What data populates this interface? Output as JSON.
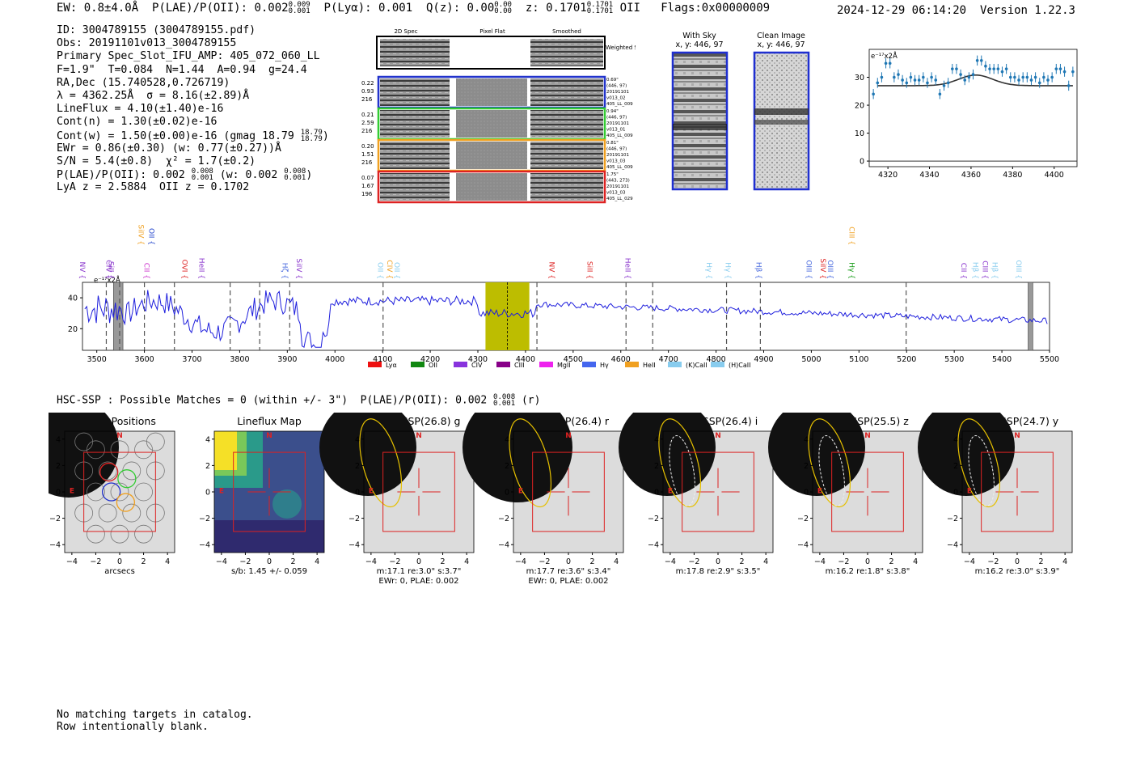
{
  "header": {
    "ew_text": "EW: 0.8±4.0Å",
    "plae_text": "P(LAE)/P(OII): 0.002",
    "plae_hi": "0.009",
    "plae_lo": "0.001",
    "plya_text": "P(Lyα): 0.001",
    "qz_text": "Q(z): 0.00",
    "qz_hi": "0.00",
    "qz_lo": "0.00",
    "z_text": "z: 0.1701",
    "z_hi": "0.1701",
    "z_lo": "0.1701",
    "z_line": "OII",
    "flags_text": "Flags:0x00000009",
    "datetime": "2024-12-29 06:14:20",
    "version": "Version 1.22.3"
  },
  "info": {
    "id_line": "ID: 3004789155 (3004789155.pdf)",
    "obs_line": "Obs: 20191101v013_3004789155",
    "primary_line": "Primary Spec_Slot_IFU_AMP: 405_072_060_LL",
    "f_line": "F=1.9\"  T=0.084  N=1.44  A=0.94  g=24.4",
    "radec_line": "RA,Dec (15.740528,0.726719)",
    "lambda_line": "λ = 4362.25Å  σ = 8.16(±2.89)Å",
    "lineflux_line": "LineFlux = 4.10(±1.40)e-16",
    "contn_line": "Cont(n) = 1.30(±0.02)e-16",
    "contw_line": "Cont(w) = 1.50(±0.00)e-16 (gmag 18.79",
    "contw_hi": "18.79",
    "contw_lo": "18.79",
    "ewr_line": "EWr = 0.86(±0.30) (w: 0.77(±0.27))Å",
    "sn_line": "S/N = 5.4(±0.8)  χ² = 1.7(±0.2)",
    "plae_line": "P(LAE)/P(OII): 0.002",
    "plae_hi": "0.008",
    "plae_lo": "0.001",
    "plae_w": "(w: 0.002",
    "plae_w_hi": "0.008",
    "plae_w_lo": "0.001",
    "lya_line": "LyA z = 2.5884  OII z = 0.1702"
  },
  "cutouts": {
    "col_labels": [
      "2D Spec",
      "Pixel Flat",
      "Smoothed"
    ],
    "weighted_label": "Weighted Sum",
    "rows": [
      {
        "left": [
          "0.22",
          "0.93",
          "216"
        ],
        "right": [
          "0.69\"",
          "(446, 97)",
          "20191101",
          "v013_02",
          "405_LL_009"
        ],
        "color": "#2233cc"
      },
      {
        "left": [
          "0.21",
          "2.59",
          "216"
        ],
        "right": [
          "0.94\"",
          "(446, 97)",
          "20191101",
          "v013_01",
          "405_LL_009"
        ],
        "color": "#33cc33"
      },
      {
        "left": [
          "0.20",
          "1.51",
          "216"
        ],
        "right": [
          "0.81\"",
          "(446, 97)",
          "20191101",
          "v013_03",
          "405_LL_009"
        ],
        "color": "#f0a020"
      },
      {
        "left": [
          "0.07",
          "1.67",
          "196"
        ],
        "right": [
          "1.75\"",
          "(443, 273)",
          "20191101",
          "v013_03",
          "405_LL_029"
        ],
        "color": "#dd2222"
      }
    ]
  },
  "sky_panels": [
    {
      "title": "With Sky",
      "subtitle": "x, y: 446, 97"
    },
    {
      "title": "Clean Image",
      "subtitle": "x, y: 446, 97"
    }
  ],
  "chart_data": [
    {
      "id": "zoom",
      "type": "scatter",
      "title": "",
      "unit_label": "e⁻¹⁷x2Å",
      "xlim": [
        4311,
        4411
      ],
      "ylim": [
        -2,
        40
      ],
      "xticks": [
        4320,
        4340,
        4360,
        4380,
        4400
      ],
      "yticks": [
        0,
        10,
        20,
        30
      ],
      "x": [
        4313,
        4315,
        4317,
        4319,
        4321,
        4323,
        4325,
        4327,
        4329,
        4331,
        4333,
        4335,
        4337,
        4339,
        4341,
        4343,
        4345,
        4347,
        4349,
        4351,
        4353,
        4355,
        4357,
        4359,
        4361,
        4363,
        4365,
        4367,
        4369,
        4371,
        4373,
        4375,
        4377,
        4379,
        4381,
        4383,
        4385,
        4387,
        4389,
        4391,
        4393,
        4395,
        4397,
        4399,
        4401,
        4403,
        4405,
        4407,
        4409
      ],
      "y": [
        24,
        28,
        30,
        35,
        35,
        30,
        31,
        29,
        28,
        30,
        29,
        29,
        30,
        28,
        30,
        29,
        24,
        27,
        28,
        33,
        33,
        31,
        29,
        30,
        31,
        36,
        36,
        34,
        33,
        33,
        33,
        32,
        33,
        30,
        30,
        29,
        30,
        30,
        29,
        30,
        28,
        30,
        29,
        30,
        33,
        33,
        32,
        27,
        32
      ],
      "fit": {
        "base": 27,
        "amp": 3.8,
        "center": 4362.25,
        "sigma": 8.16
      }
    },
    {
      "id": "full",
      "type": "line",
      "unit_label": "e⁻¹⁷x2Å",
      "xlim": [
        3470,
        5500
      ],
      "ylim": [
        6,
        50
      ],
      "xticks": [
        3500,
        3600,
        3700,
        3800,
        3900,
        4000,
        4100,
        4200,
        4300,
        4400,
        4500,
        4600,
        4700,
        4800,
        4900,
        5000,
        5100,
        5200,
        5300,
        5400,
        5500
      ],
      "yticks": [
        20,
        40
      ],
      "highlight": [
        4316,
        4408
      ],
      "highlight_center": 4362,
      "blocked": [
        [
          3535,
          3555
        ],
        [
          5455,
          5465
        ]
      ],
      "dashed": [
        3520,
        3548,
        3600,
        3663,
        3780,
        3842,
        3905,
        4101,
        4424,
        4611,
        4667,
        4822,
        4893,
        5199
      ],
      "line_labels": [
        {
          "text": "NV",
          "x": 3465,
          "color": "#8833cc",
          "row": 2
        },
        {
          "text": "CIV",
          "x": 3520,
          "color": "#8833cc",
          "row": 2
        },
        {
          "text": "SiII",
          "x": 3525,
          "color": "#8833cc",
          "row": 2
        },
        {
          "text": "CII",
          "x": 3600,
          "color": "#cc33cc",
          "row": 2
        },
        {
          "text": "SiIV",
          "x": 3588,
          "color": "#f0a020",
          "row": 0
        },
        {
          "text": "OII",
          "x": 3610,
          "color": "#2244cc",
          "row": 0
        },
        {
          "text": "OVI",
          "x": 3680,
          "color": "#dd2222",
          "row": 2
        },
        {
          "text": "HeII",
          "x": 3715,
          "color": "#8833cc",
          "row": 2
        },
        {
          "text": "Hζ",
          "x": 3890,
          "color": "#4466dd",
          "row": 2
        },
        {
          "text": "SiIV",
          "x": 3920,
          "color": "#8833cc",
          "row": 2
        },
        {
          "text": "OII",
          "x": 4090,
          "color": "#88ccee",
          "row": 2
        },
        {
          "text": "CIV",
          "x": 4110,
          "color": "#f0a020",
          "row": 2
        },
        {
          "text": "OII",
          "x": 4125,
          "color": "#88ccee",
          "row": 2
        },
        {
          "text": "NV",
          "x": 4450,
          "color": "#dd2222",
          "row": 2
        },
        {
          "text": "SiII",
          "x": 4530,
          "color": "#dd2222",
          "row": 2
        },
        {
          "text": "HeII",
          "x": 4610,
          "color": "#8833cc",
          "row": 2
        },
        {
          "text": "Hγ",
          "x": 4780,
          "color": "#88ccee",
          "row": 2
        },
        {
          "text": "Hγ",
          "x": 4820,
          "color": "#88ccee",
          "row": 2
        },
        {
          "text": "Hβ",
          "x": 4885,
          "color": "#4466dd",
          "row": 2
        },
        {
          "text": "OIII",
          "x": 4990,
          "color": "#4466dd",
          "row": 2
        },
        {
          "text": "SiIV",
          "x": 5020,
          "color": "#dd2222",
          "row": 2
        },
        {
          "text": "OIII",
          "x": 5035,
          "color": "#4466dd",
          "row": 2
        },
        {
          "text": "CIII",
          "x": 5080,
          "color": "#f0a020",
          "row": 0
        },
        {
          "text": "Hγ",
          "x": 5080,
          "color": "#119911",
          "row": 2
        },
        {
          "text": "CII",
          "x": 5315,
          "color": "#8833cc",
          "row": 2
        },
        {
          "text": "Hβ",
          "x": 5340,
          "color": "#88ccee",
          "row": 2
        },
        {
          "text": "CIII",
          "x": 5360,
          "color": "#8833cc",
          "row": 2
        },
        {
          "text": "Hβ",
          "x": 5380,
          "color": "#88ccee",
          "row": 2
        },
        {
          "text": "OIII",
          "x": 5430,
          "color": "#88ccee",
          "row": 2
        }
      ],
      "legend": [
        {
          "label": "Lyα",
          "color": "#ee1111"
        },
        {
          "label": "OII",
          "color": "#118811"
        },
        {
          "label": "CIV",
          "color": "#8833dd"
        },
        {
          "label": "CIII",
          "color": "#880088"
        },
        {
          "label": "MgII",
          "color": "#ee22ee"
        },
        {
          "label": "Hγ",
          "color": "#4466ee"
        },
        {
          "label": "HeII",
          "color": "#f0a020"
        },
        {
          "label": "(K)CaII",
          "color": "#88ccee"
        },
        {
          "label": "(H)CaII",
          "color": "#88ccee"
        }
      ]
    }
  ],
  "hsc": {
    "title": "HSC-SSP : Possible Matches = 0 (within +/- 3\")  P(LAE)/P(OII): 0.002",
    "title_hi": "0.008",
    "title_lo": "0.001",
    "title_band": "(r)",
    "ticks": [
      "4",
      "2",
      "0",
      "−2",
      "−4"
    ],
    "xticks": [
      "−4",
      "−2",
      "0",
      "2",
      "4"
    ],
    "panels": [
      {
        "title": "Fiber Positions",
        "caption": [
          "arcsecs"
        ]
      },
      {
        "title": "Lineflux Map",
        "caption": [
          "s/b: 1.45 +/- 0.059"
        ]
      },
      {
        "title": "HSC SSP(26.8) g",
        "caption": [
          "m:17.1  re:3.0\"  s:3.7\"",
          "EWr: 0, PLAE: 0.002"
        ]
      },
      {
        "title": "HSC SSP(26.4) r",
        "caption": [
          "m:17.7  re:3.6\"  s:3.4\"",
          "EWr: 0, PLAE: 0.002"
        ]
      },
      {
        "title": "HSC SSP(26.4) i",
        "caption": [
          "m:17.8  re:2.9\"  s:3.5\""
        ]
      },
      {
        "title": "HSC SSP(25.5) z",
        "caption": [
          "m:16.2  re:1.8\"  s:3.8\""
        ]
      },
      {
        "title": "HSC SSP(24.7) y",
        "caption": [
          "m:16.2  re:3.0\"  s:3.9\""
        ]
      }
    ],
    "label_n": "N",
    "label_e": "E"
  },
  "footer": {
    "line1": "No matching targets in catalog.",
    "line2": "Row intentionally blank."
  }
}
